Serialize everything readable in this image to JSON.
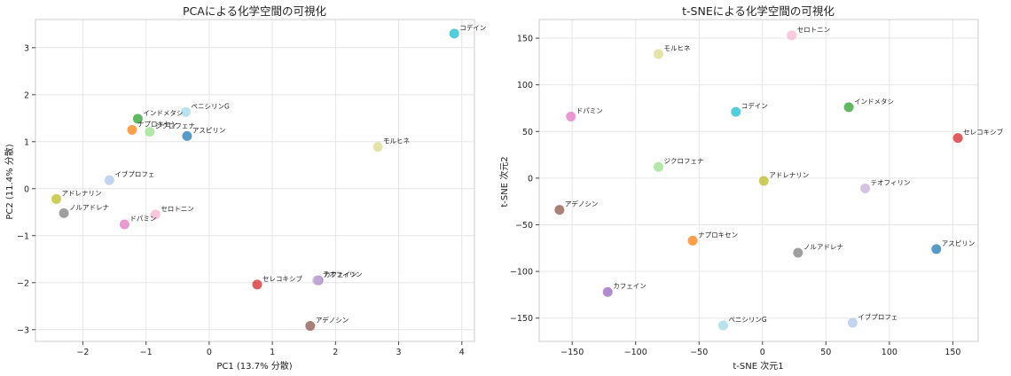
{
  "chart_data": [
    {
      "type": "scatter",
      "title": "PCAによる化学空間の可視化",
      "xlabel": "PC1 (13.7% 分散)",
      "ylabel": "PC2 (11.4% 分散)",
      "xlim": [
        -2.75,
        4.2
      ],
      "ylim": [
        -3.25,
        3.6
      ],
      "xticks": [
        -2,
        -1,
        0,
        1,
        2,
        3,
        4
      ],
      "yticks": [
        -3,
        -2,
        -1,
        0,
        1,
        2,
        3
      ],
      "grid": true,
      "points": [
        {
          "label": "コデイン",
          "x": 3.88,
          "y": 3.3,
          "color": "#17becf"
        },
        {
          "label": "ペニシリンG",
          "x": -0.37,
          "y": 1.63,
          "color": "#9edae5"
        },
        {
          "label": "インドメタシ",
          "x": -1.13,
          "y": 1.49,
          "color": "#2ca02c"
        },
        {
          "label": "ナプロキセン",
          "x": -1.22,
          "y": 1.25,
          "color": "#ff7f0e"
        },
        {
          "label": "ジクロフェナ",
          "x": -0.94,
          "y": 1.21,
          "color": "#98df8a"
        },
        {
          "label": "アスピリン",
          "x": -0.35,
          "y": 1.12,
          "color": "#1f77b4"
        },
        {
          "label": "モルヒネ",
          "x": 2.67,
          "y": 0.89,
          "color": "#dbdb8d"
        },
        {
          "label": "イブプロフェ",
          "x": -1.58,
          "y": 0.18,
          "color": "#aec7e8"
        },
        {
          "label": "アドレナリン",
          "x": -2.42,
          "y": -0.22,
          "color": "#bcbd22"
        },
        {
          "label": "ノルアドレナ",
          "x": -2.3,
          "y": -0.52,
          "color": "#7f7f7f"
        },
        {
          "label": "セロトニン",
          "x": -0.85,
          "y": -0.55,
          "color": "#f7b6d2"
        },
        {
          "label": "ドパミン",
          "x": -1.34,
          "y": -0.76,
          "color": "#e377c2"
        },
        {
          "label": "セレコキシブ",
          "x": 0.76,
          "y": -2.04,
          "color": "#d62728"
        },
        {
          "label": "カフェイン",
          "x": 1.73,
          "y": -1.95,
          "color": "#9467bd"
        },
        {
          "label": "テオフィリン",
          "x": 1.71,
          "y": -1.95,
          "color": "#c5b0d5"
        },
        {
          "label": "アデノシン",
          "x": 1.6,
          "y": -2.92,
          "color": "#8c564b"
        }
      ]
    },
    {
      "type": "scatter",
      "title": "t-SNEによる化学空間の可視化",
      "xlabel": "t-SNE 次元1",
      "ylabel": "t-SNE 次元2",
      "xlim": [
        -176,
        170
      ],
      "ylim": [
        -175,
        170
      ],
      "xticks": [
        -150,
        -100,
        -50,
        0,
        50,
        100,
        150
      ],
      "yticks": [
        -150,
        -100,
        -50,
        0,
        50,
        100,
        150
      ],
      "grid": true,
      "points": [
        {
          "label": "セロトニン",
          "x": 23,
          "y": 153,
          "color": "#f7b6d2"
        },
        {
          "label": "モルヒネ",
          "x": -82,
          "y": 133,
          "color": "#dbdb8d"
        },
        {
          "label": "インドメタシ",
          "x": 68,
          "y": 76,
          "color": "#2ca02c"
        },
        {
          "label": "コデイン",
          "x": -21,
          "y": 71,
          "color": "#17becf"
        },
        {
          "label": "ドパミン",
          "x": -151,
          "y": 66,
          "color": "#e377c2"
        },
        {
          "label": "セレコキシブ",
          "x": 154,
          "y": 43,
          "color": "#d62728"
        },
        {
          "label": "ジクロフェナ",
          "x": -82,
          "y": 12,
          "color": "#98df8a"
        },
        {
          "label": "アドレナリン",
          "x": 1,
          "y": -3,
          "color": "#bcbd22"
        },
        {
          "label": "テオフィリン",
          "x": 81,
          "y": -11,
          "color": "#c5b0d5"
        },
        {
          "label": "アデノシン",
          "x": -160,
          "y": -34,
          "color": "#8c564b"
        },
        {
          "label": "ナプロキセン",
          "x": -55,
          "y": -67,
          "color": "#ff7f0e"
        },
        {
          "label": "アスピリン",
          "x": 137,
          "y": -76,
          "color": "#1f77b4"
        },
        {
          "label": "ノルアドレナ",
          "x": 28,
          "y": -80,
          "color": "#7f7f7f"
        },
        {
          "label": "カフェイン",
          "x": -122,
          "y": -122,
          "color": "#9467bd"
        },
        {
          "label": "ペニシリンG",
          "x": -31,
          "y": -158,
          "color": "#9edae5"
        },
        {
          "label": "イブプロフェ",
          "x": 71,
          "y": -155,
          "color": "#aec7e8"
        }
      ]
    }
  ]
}
